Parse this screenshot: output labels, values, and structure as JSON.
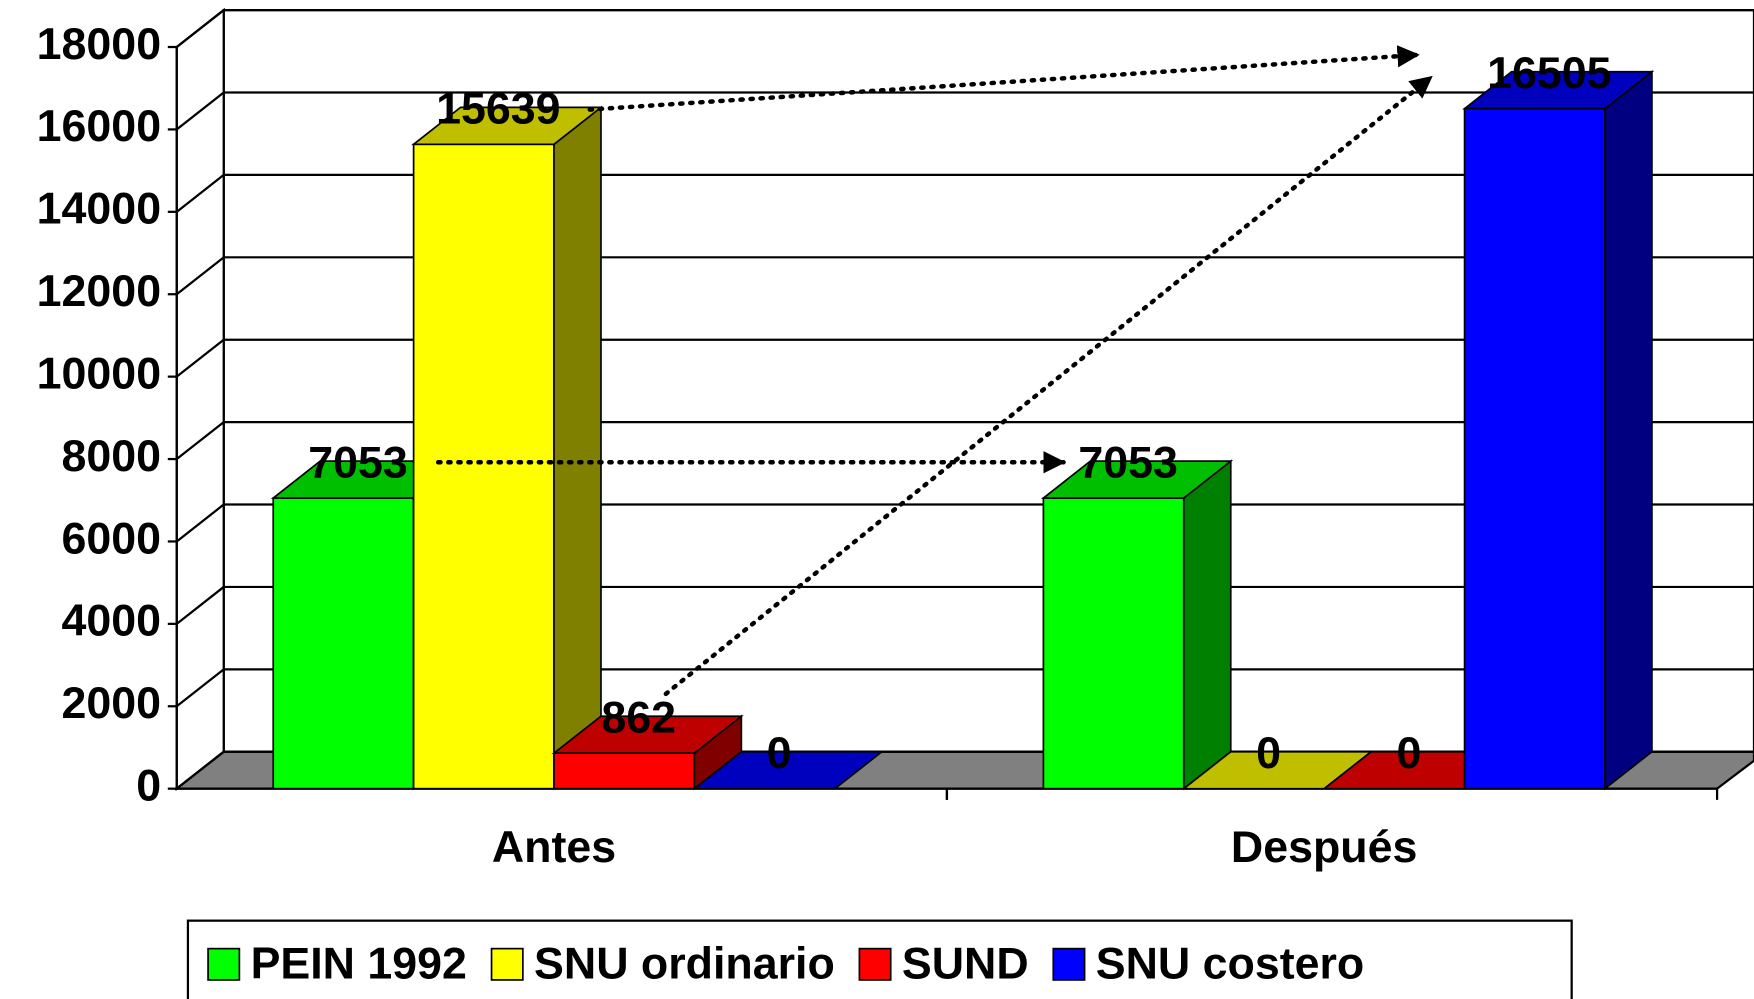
{
  "chart_data": {
    "type": "bar3d",
    "categories": [
      "Antes",
      "Después"
    ],
    "series": [
      {
        "name": "PEIN 1992",
        "color": "#00ff00",
        "values": [
          7053,
          7053
        ]
      },
      {
        "name": "SNU ordinario",
        "color": "#ffff00",
        "values": [
          15639,
          0
        ]
      },
      {
        "name": "SUND",
        "color": "#ff0000",
        "values": [
          862,
          0
        ]
      },
      {
        "name": "SNU costero",
        "color": "#0000ff",
        "values": [
          0,
          16505
        ]
      }
    ],
    "ylim": [
      0,
      18000
    ],
    "yticks": [
      0,
      2000,
      4000,
      6000,
      8000,
      10000,
      12000,
      14000,
      16000,
      18000
    ],
    "grid": true,
    "legend": "bottom"
  }
}
